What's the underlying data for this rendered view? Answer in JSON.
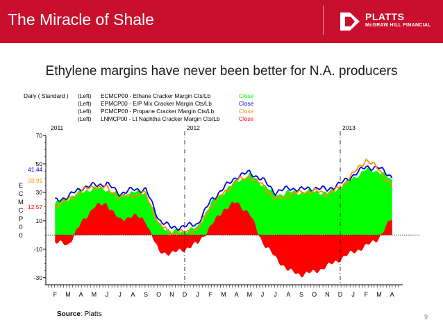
{
  "header": {
    "title": "The Miracle of Shale",
    "logo_main": "PLATTS",
    "logo_sub": "McGRAW HILL FINANCIAL",
    "color": "#c8102e"
  },
  "subtitle": "Ethylene margins have never been better for N.A. producers",
  "source": {
    "label": "Source",
    "value": ": Platts"
  },
  "page_number": "9",
  "chart_data": {
    "type": "area",
    "frequency_label": "Daily ( Standard )",
    "legend": [
      {
        "axis": "(Left)",
        "code": "ECMCP00 - Ethane Cracker Margin Cts/Lb",
        "field": "Close",
        "color": "#00ff00"
      },
      {
        "axis": "(Left)",
        "code": "EPMCP00 - E/P Mix Cracker Margin Cts/Lb",
        "field": "Close",
        "color": "#0000dd"
      },
      {
        "axis": "(Left)",
        "code": "PCMCP00 - Propane Cracker Margin Cts/Lb",
        "field": "Close",
        "color": "#ff8c00"
      },
      {
        "axis": "(Left)",
        "code": "LNMCP00 - Lt Naphtha Cracker Margin Cts/Lb",
        "field": "Close",
        "color": "#ff0000"
      }
    ],
    "ylabel": "ECMCP00",
    "ylim": [
      -35,
      70
    ],
    "yticks": [
      70,
      50,
      30,
      10,
      -10,
      -30
    ],
    "year_labels": [
      "2011",
      "2012",
      "2013"
    ],
    "month_labels": [
      "F",
      "M",
      "A",
      "M",
      "J",
      "J",
      "A",
      "S",
      "O",
      "N",
      "D",
      "J",
      "F",
      "M",
      "A",
      "M",
      "J",
      "J",
      "A",
      "S",
      "O",
      "N",
      "D",
      "J",
      "F",
      "M",
      "A"
    ],
    "last_values": [
      {
        "label": "41.44",
        "value": 41.44,
        "color": "#0000dd"
      },
      {
        "label": "33.91",
        "value": 33.91,
        "color": "#ff8c00"
      },
      {
        "label": "12.57",
        "value": 12.57,
        "color": "#ff0000"
      }
    ],
    "months": [
      "2011-02",
      "2011-03",
      "2011-04",
      "2011-05",
      "2011-06",
      "2011-07",
      "2011-08",
      "2011-09",
      "2011-10",
      "2011-11",
      "2011-12",
      "2012-01",
      "2012-02",
      "2012-03",
      "2012-04",
      "2012-05",
      "2012-06",
      "2012-07",
      "2012-08",
      "2012-09",
      "2012-10",
      "2012-11",
      "2012-12",
      "2013-01",
      "2013-02",
      "2013-03",
      "2013-04"
    ],
    "series": [
      {
        "name": "ECMCP00",
        "color": "#00ff00",
        "values": [
          22,
          26,
          30,
          33,
          32,
          28,
          30,
          30,
          8,
          2,
          3,
          5,
          22,
          30,
          38,
          42,
          36,
          28,
          30,
          30,
          31,
          29,
          34,
          40,
          46,
          45,
          38
        ]
      },
      {
        "name": "EPMCP00",
        "color": "#0000dd",
        "values": [
          24,
          27,
          33,
          35,
          36,
          29,
          32,
          32,
          11,
          5,
          6,
          8,
          24,
          33,
          41,
          44,
          39,
          30,
          33,
          32,
          33,
          32,
          36,
          42,
          48,
          47,
          41
        ]
      },
      {
        "name": "PCMCP00",
        "color": "#ff8c00",
        "values": [
          21,
          24,
          31,
          34,
          33,
          26,
          28,
          29,
          7,
          1,
          2,
          4,
          20,
          29,
          38,
          41,
          35,
          25,
          28,
          30,
          31,
          29,
          33,
          43,
          53,
          46,
          34
        ]
      },
      {
        "name": "LNMCP00",
        "color": "#ff0000",
        "values": [
          -5,
          -7,
          8,
          20,
          22,
          10,
          14,
          10,
          -12,
          -13,
          -10,
          -6,
          6,
          18,
          23,
          15,
          -5,
          -16,
          -25,
          -28,
          -26,
          -22,
          -17,
          -12,
          -8,
          -2,
          12
        ]
      }
    ]
  }
}
